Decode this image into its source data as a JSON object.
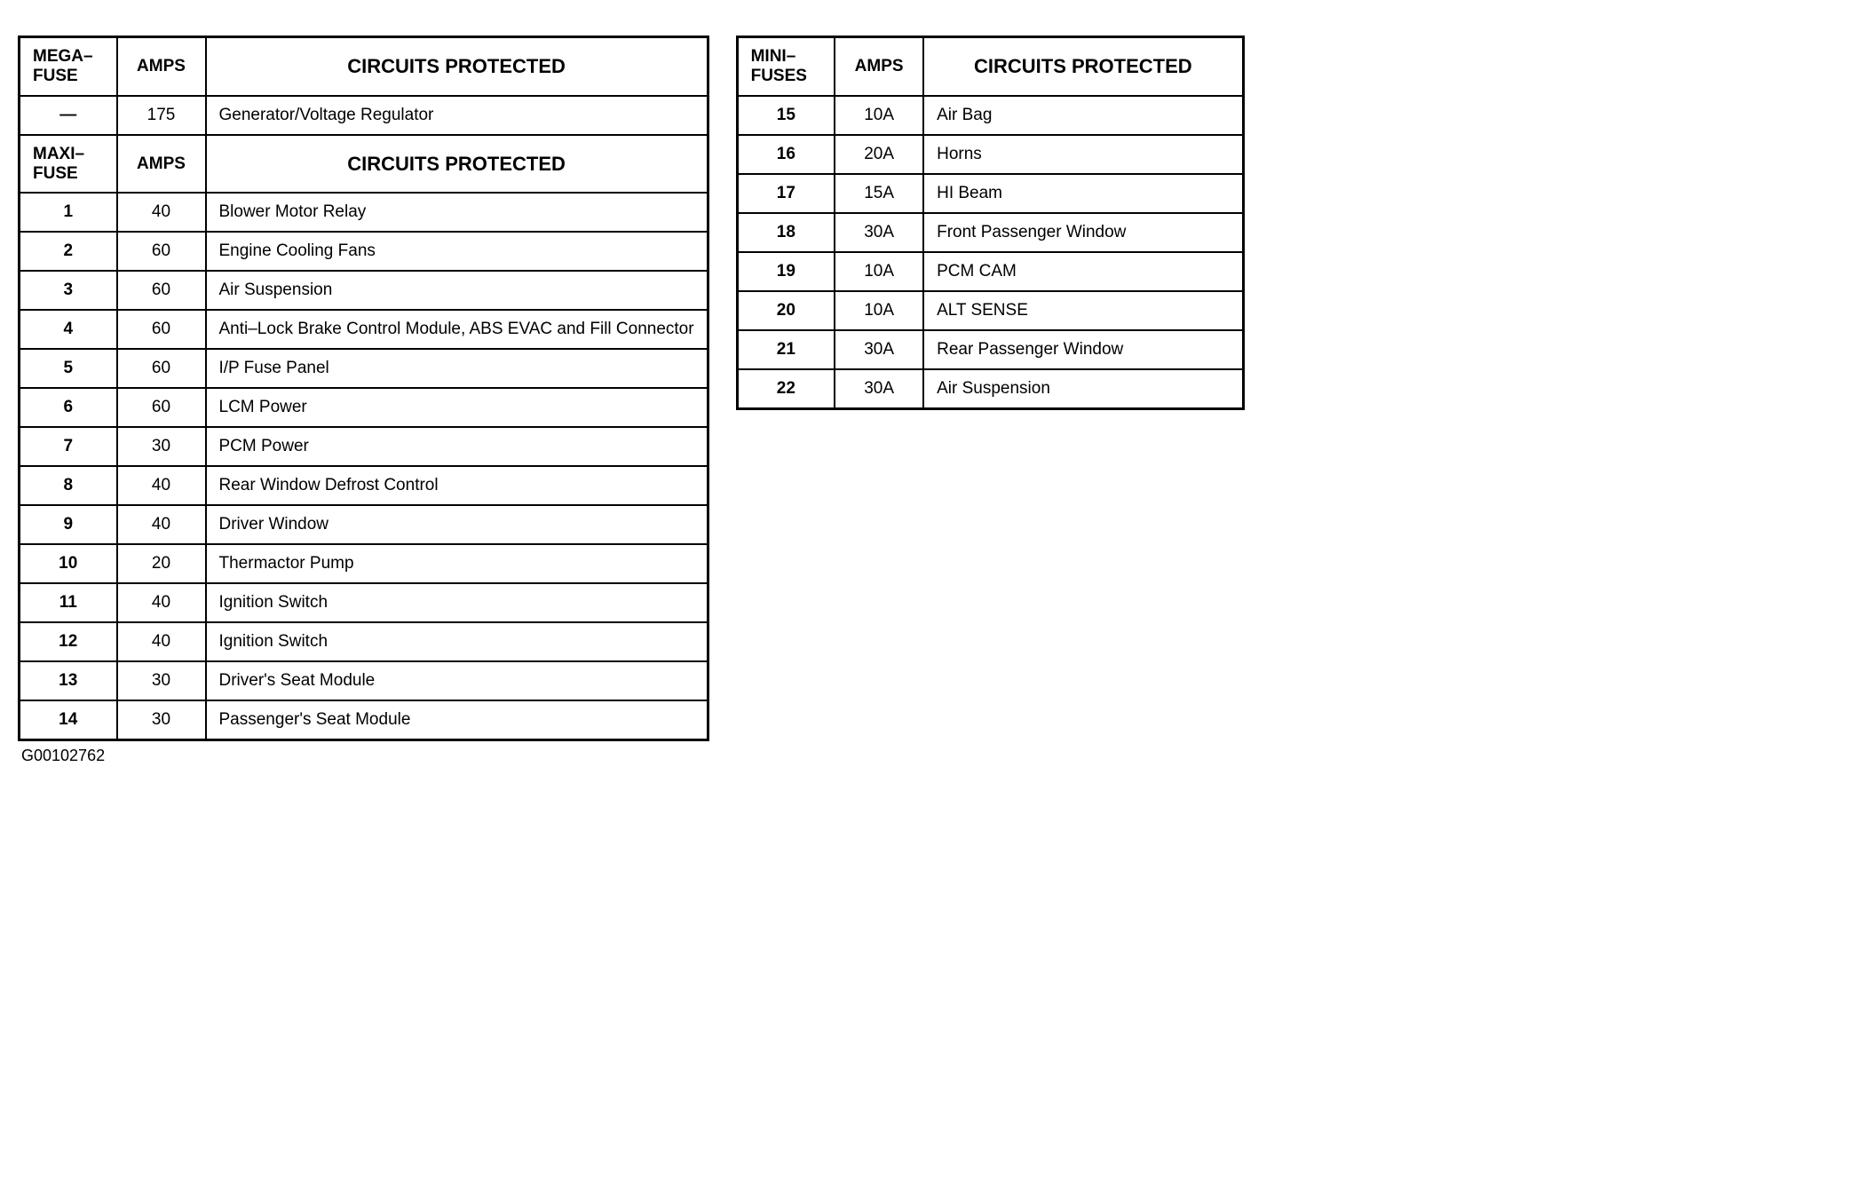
{
  "left": {
    "mega": {
      "header_label": "MEGA–\nFUSE",
      "header_amps": "AMPS",
      "header_circ": "CIRCUITS PROTECTED",
      "rows": [
        {
          "id": "—",
          "amps": "175",
          "circ": "Generator/Voltage Regulator"
        }
      ]
    },
    "maxi": {
      "header_label": "MAXI–\nFUSE",
      "header_amps": "AMPS",
      "header_circ": "CIRCUITS PROTECTED",
      "rows": [
        {
          "id": "1",
          "amps": "40",
          "circ": "Blower Motor Relay"
        },
        {
          "id": "2",
          "amps": "60",
          "circ": "Engine Cooling Fans"
        },
        {
          "id": "3",
          "amps": "60",
          "circ": "Air Suspension"
        },
        {
          "id": "4",
          "amps": "60",
          "circ": "Anti–Lock Brake Control Module, ABS EVAC and Fill Connector"
        },
        {
          "id": "5",
          "amps": "60",
          "circ": "I/P Fuse Panel"
        },
        {
          "id": "6",
          "amps": "60",
          "circ": "LCM Power"
        },
        {
          "id": "7",
          "amps": "30",
          "circ": "PCM Power"
        },
        {
          "id": "8",
          "amps": "40",
          "circ": "Rear Window Defrost Control"
        },
        {
          "id": "9",
          "amps": "40",
          "circ": "Driver Window"
        },
        {
          "id": "10",
          "amps": "20",
          "circ": "Thermactor Pump"
        },
        {
          "id": "11",
          "amps": "40",
          "circ": "Ignition Switch"
        },
        {
          "id": "12",
          "amps": "40",
          "circ": "Ignition Switch"
        },
        {
          "id": "13",
          "amps": "30",
          "circ": "Driver's Seat Module"
        },
        {
          "id": "14",
          "amps": "30",
          "circ": "Passenger's Seat Module"
        }
      ]
    }
  },
  "right": {
    "mini": {
      "header_label": "MINI–\nFUSES",
      "header_amps": "AMPS",
      "header_circ": "CIRCUITS PROTECTED",
      "rows": [
        {
          "id": "15",
          "amps": "10A",
          "circ": "Air Bag"
        },
        {
          "id": "16",
          "amps": "20A",
          "circ": "Horns"
        },
        {
          "id": "17",
          "amps": "15A",
          "circ": "HI Beam"
        },
        {
          "id": "18",
          "amps": "30A",
          "circ": "Front Passenger Window"
        },
        {
          "id": "19",
          "amps": "10A",
          "circ": "PCM CAM"
        },
        {
          "id": "20",
          "amps": "10A",
          "circ": "ALT SENSE"
        },
        {
          "id": "21",
          "amps": "30A",
          "circ": "Rear Passenger Window"
        },
        {
          "id": "22",
          "amps": "30A",
          "circ": "Air Suspension"
        }
      ]
    }
  },
  "doc_id": "G00102762"
}
